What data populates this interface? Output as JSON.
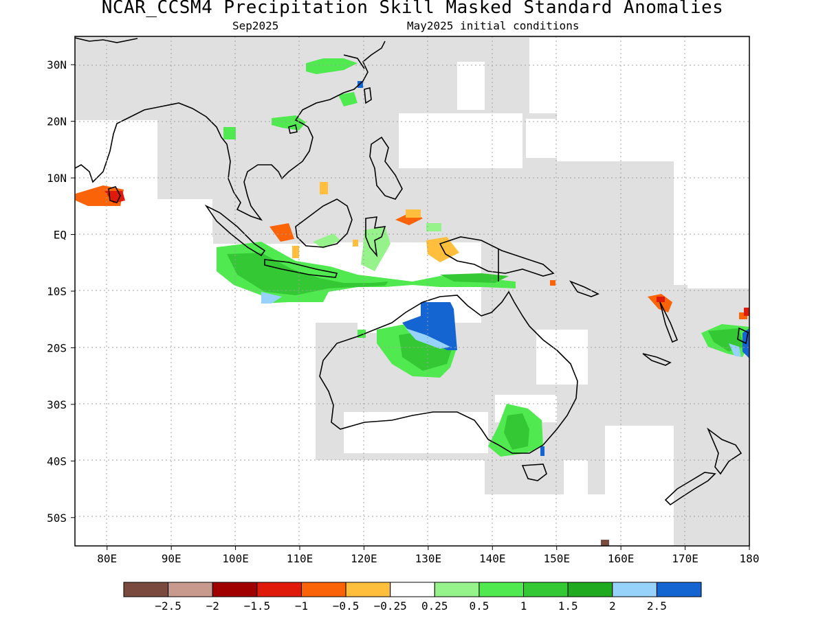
{
  "header": {
    "title": "NCAR_CCSM4 Precipitation Skill Masked Standard Anomalies",
    "target_month": "Sep2025",
    "initial_conditions": "May2025 initial conditions"
  },
  "map": {
    "lon_range": [
      75,
      180
    ],
    "lat_range": [
      -55,
      35
    ],
    "lat_ticks": [
      {
        "value": 30,
        "label": "30N"
      },
      {
        "value": 20,
        "label": "20N"
      },
      {
        "value": 10,
        "label": "10N"
      },
      {
        "value": 0,
        "label": "EQ"
      },
      {
        "value": -10,
        "label": "10S"
      },
      {
        "value": -20,
        "label": "20S"
      },
      {
        "value": -30,
        "label": "30S"
      },
      {
        "value": -40,
        "label": "40S"
      },
      {
        "value": -50,
        "label": "50S"
      }
    ],
    "lon_ticks": [
      {
        "value": 80,
        "label": "80E"
      },
      {
        "value": 90,
        "label": "90E"
      },
      {
        "value": 100,
        "label": "100E"
      },
      {
        "value": 110,
        "label": "110E"
      },
      {
        "value": 120,
        "label": "120E"
      },
      {
        "value": 130,
        "label": "130E"
      },
      {
        "value": 140,
        "label": "140E"
      },
      {
        "value": 150,
        "label": "150E"
      },
      {
        "value": 160,
        "label": "160E"
      },
      {
        "value": 170,
        "label": "170E"
      },
      {
        "value": 180,
        "label": "180"
      }
    ],
    "colors": {
      "mask_gray": "#e0e0e0",
      "coastline": "#000000",
      "grid": "#a0a0a0"
    }
  },
  "colorbar": {
    "colors": [
      "#7a4a3e",
      "#c89a8e",
      "#a00000",
      "#e01a0a",
      "#fb6308",
      "#ffbf3c",
      "#ffffff",
      "#96f28a",
      "#50ea50",
      "#34c934",
      "#1faa1f",
      "#96d2fa",
      "#1464d2"
    ],
    "labels": [
      "−2.5",
      "−2",
      "−1.5",
      "−1",
      "−0.5",
      "−0.25",
      "0.25",
      "0.5",
      "1",
      "1.5",
      "2",
      "2.5"
    ]
  }
}
